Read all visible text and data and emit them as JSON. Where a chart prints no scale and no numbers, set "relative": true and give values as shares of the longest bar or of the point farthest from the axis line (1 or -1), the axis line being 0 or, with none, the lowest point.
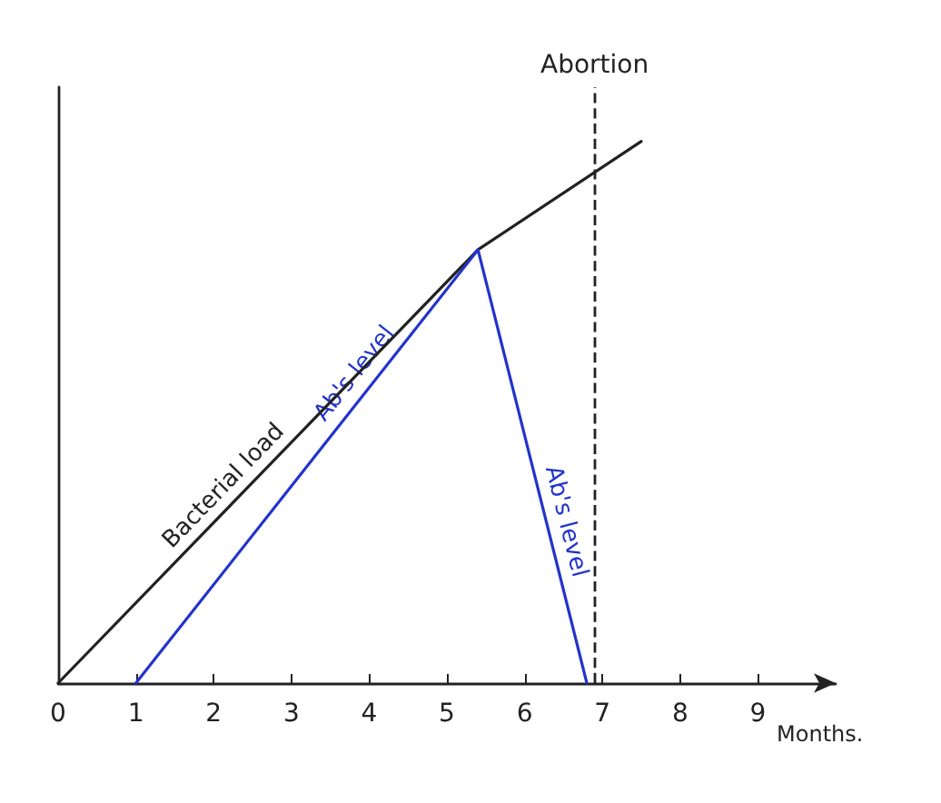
{
  "chart_data": {
    "type": "line",
    "relative": true,
    "xlabel": "Months.",
    "xlim": [
      0,
      10
    ],
    "xticks": [
      0,
      1,
      2,
      3,
      4,
      5,
      6,
      7,
      8,
      9
    ],
    "tick_labels": "x",
    "grid": false,
    "marker": "none",
    "line_style": "solid",
    "series": [
      {
        "color": "#222222",
        "x": [
          0,
          5.4,
          7.5
        ],
        "values": [
          0,
          0.8,
          1
        ]
      },
      {
        "color": "#2233cc",
        "x": [
          1,
          5.4,
          6.8
        ],
        "values": [
          0,
          0.8,
          0
        ]
      }
    ],
    "ref_lines": [
      {
        "axis": "x",
        "value": 6.9,
        "label": "Abortion",
        "line_style": "dashed",
        "color": "#222222"
      }
    ],
    "annotations": [
      {
        "text": "Bacterial load",
        "x": 2.3,
        "y": 0.34
      },
      {
        "text": "Ab's level",
        "x": 4.0,
        "y": 0.55
      },
      {
        "text": "Ab's level",
        "x": 6.3,
        "y": 0.29
      }
    ]
  }
}
